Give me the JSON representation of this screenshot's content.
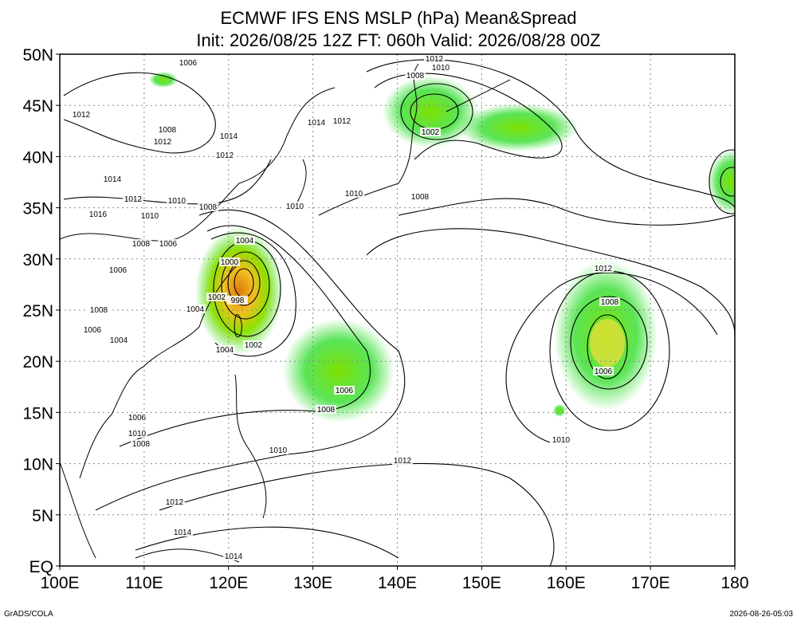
{
  "title": {
    "line1": "ECMWF IFS ENS MSLP (hPa) Mean&Spread",
    "line2": "Init: 2026/08/25 12Z  FT: 060h  Valid: 2026/08/28 00Z"
  },
  "lat_labels": [
    "50N",
    "45N",
    "40N",
    "35N",
    "30N",
    "25N",
    "20N",
    "15N",
    "10N",
    "5N",
    "EQ"
  ],
  "lon_labels": [
    "100E",
    "110E",
    "120E",
    "130E",
    "140E",
    "150E",
    "160E",
    "170E",
    "180"
  ],
  "contour_labels": [
    "1006",
    "1012",
    "1008",
    "1012",
    "1014",
    "1012",
    "1014",
    "1012",
    "1002",
    "1014",
    "1012",
    "1010",
    "1008",
    "1016",
    "1010",
    "1010",
    "1008",
    "1010",
    "1008",
    "1006",
    "1006",
    "1004",
    "1000",
    "1002",
    "998",
    "1004",
    "1008",
    "1006",
    "1004",
    "1004",
    "1002",
    "1006",
    "1008",
    "1006",
    "1010",
    "1008",
    "1010",
    "1012",
    "1012",
    "1014",
    "1014",
    "1012",
    "1008",
    "1006",
    "1010",
    "1012",
    "1010",
    "1008"
  ],
  "footer": {
    "left": "GrADS/COLA",
    "right": "2026-08-26-05:03"
  }
}
